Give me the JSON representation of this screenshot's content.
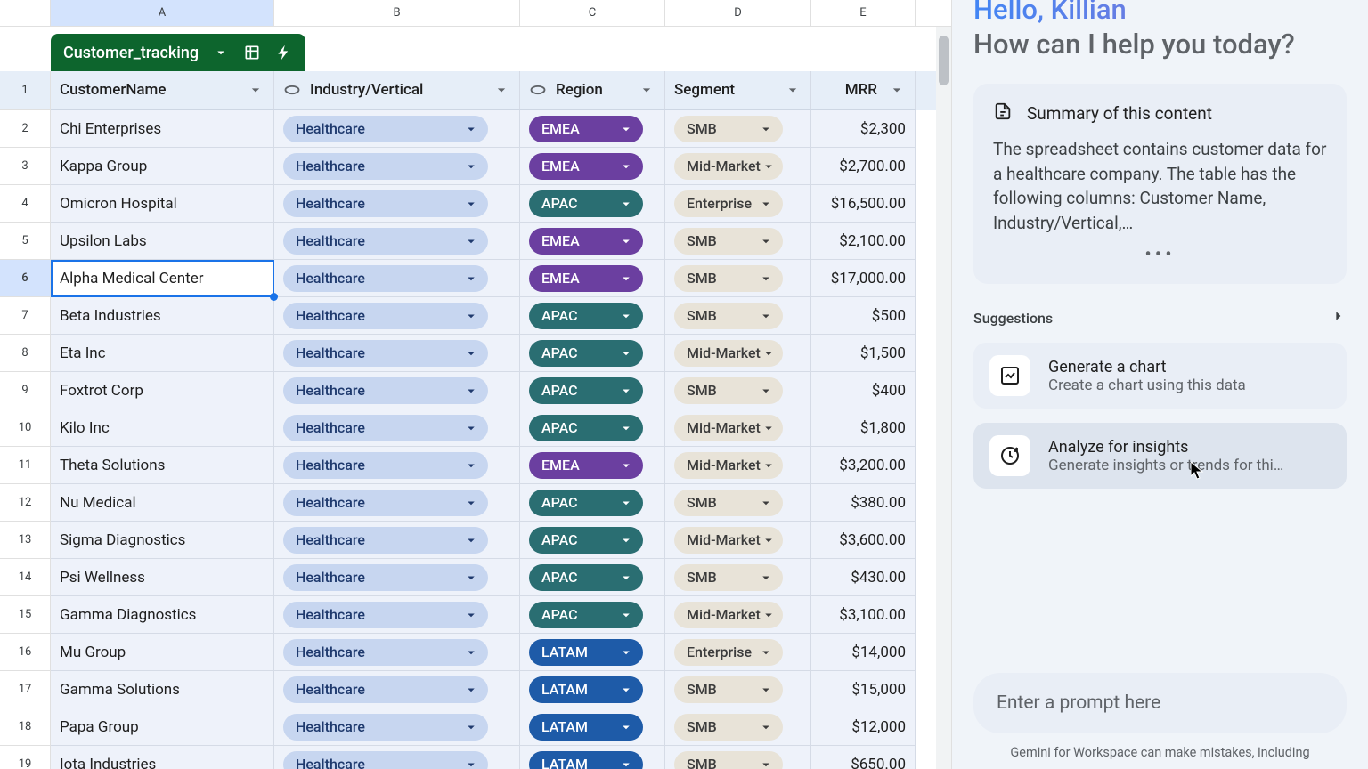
{
  "sheet": {
    "tableName": "Customer_tracking",
    "colLetters": [
      "A",
      "B",
      "C",
      "D",
      "E"
    ],
    "rowNumbers": [
      1,
      2,
      3,
      4,
      5,
      6,
      7,
      8,
      9,
      10,
      11,
      12,
      13,
      14,
      15,
      16,
      17,
      18,
      19
    ],
    "selectedCol": "A",
    "selectedRowNum": 6,
    "columns": {
      "name": "CustomerName",
      "industry": "Industry/Vertical",
      "region": "Region",
      "segment": "Segment",
      "mrr": "MRR"
    },
    "rows": [
      {
        "name": "Chi Enterprises",
        "industry": "Healthcare",
        "region": "EMEA",
        "segment": "SMB",
        "mrr": "$2,300"
      },
      {
        "name": "Kappa Group",
        "industry": "Healthcare",
        "region": "EMEA",
        "segment": "Mid-Market",
        "mrr": "$2,700.00"
      },
      {
        "name": "Omicron Hospital",
        "industry": "Healthcare",
        "region": "APAC",
        "segment": "Enterprise",
        "mrr": "$16,500.00"
      },
      {
        "name": "Upsilon Labs",
        "industry": "Healthcare",
        "region": "EMEA",
        "segment": "SMB",
        "mrr": "$2,100.00"
      },
      {
        "name": "Alpha Medical Center",
        "industry": "Healthcare",
        "region": "EMEA",
        "segment": "SMB",
        "mrr": "$17,000.00",
        "selected": true
      },
      {
        "name": "Beta Industries",
        "industry": "Healthcare",
        "region": "APAC",
        "segment": "SMB",
        "mrr": "$500"
      },
      {
        "name": "Eta Inc",
        "industry": "Healthcare",
        "region": "APAC",
        "segment": "Mid-Market",
        "mrr": "$1,500"
      },
      {
        "name": "Foxtrot Corp",
        "industry": "Healthcare",
        "region": "APAC",
        "segment": "SMB",
        "mrr": "$400"
      },
      {
        "name": "Kilo Inc",
        "industry": "Healthcare",
        "region": "APAC",
        "segment": "Mid-Market",
        "mrr": "$1,800"
      },
      {
        "name": "Theta Solutions",
        "industry": "Healthcare",
        "region": "EMEA",
        "segment": "Mid-Market",
        "mrr": "$3,200.00"
      },
      {
        "name": "Nu Medical",
        "industry": "Healthcare",
        "region": "APAC",
        "segment": "SMB",
        "mrr": "$380.00"
      },
      {
        "name": "Sigma Diagnostics",
        "industry": "Healthcare",
        "region": "APAC",
        "segment": "Mid-Market",
        "mrr": "$3,600.00"
      },
      {
        "name": "Psi Wellness",
        "industry": "Healthcare",
        "region": "APAC",
        "segment": "SMB",
        "mrr": "$430.00"
      },
      {
        "name": "Gamma Diagnostics",
        "industry": "Healthcare",
        "region": "APAC",
        "segment": "Mid-Market",
        "mrr": "$3,100.00"
      },
      {
        "name": "Mu Group",
        "industry": "Healthcare",
        "region": "LATAM",
        "segment": "Enterprise",
        "mrr": "$14,000"
      },
      {
        "name": "Gamma Solutions",
        "industry": "Healthcare",
        "region": "LATAM",
        "segment": "SMB",
        "mrr": "$15,000"
      },
      {
        "name": "Papa Group",
        "industry": "Healthcare",
        "region": "LATAM",
        "segment": "SMB",
        "mrr": "$12,000"
      },
      {
        "name": "Iota Industries",
        "industry": "Healthcare",
        "region": "LATAM",
        "segment": "SMB",
        "mrr": "$650.00"
      }
    ],
    "colors": {
      "headerGreen": "#0d652d",
      "rowBg": "#eef2fa",
      "selectBlue": "#1a73e8",
      "industryPill": "#c7d6f0",
      "segmentPill": "#e8e3d8",
      "region": {
        "EMEA": "#6b3fa0",
        "APAC": "#2a6e72",
        "LATAM": "#1e5ba8"
      }
    }
  },
  "panel": {
    "greeting1": "Hello, Killian",
    "greeting2": "How can I help you today?",
    "summary": {
      "title": "Summary of this content",
      "body": "The spreadsheet contains customer data for a healthcare company. The table has the following columns: Customer Name, Industry/Vertical,…"
    },
    "suggestionsLabel": "Suggestions",
    "suggestions": [
      {
        "title": "Generate a chart",
        "sub": "Create a chart using this data",
        "icon": "chart"
      },
      {
        "title": "Analyze for insights",
        "sub": "Generate insights or trends for thi…",
        "icon": "insights"
      }
    ],
    "promptPlaceholder": "Enter a prompt here",
    "disclaimer": "Gemini for Workspace can make mistakes, including"
  }
}
